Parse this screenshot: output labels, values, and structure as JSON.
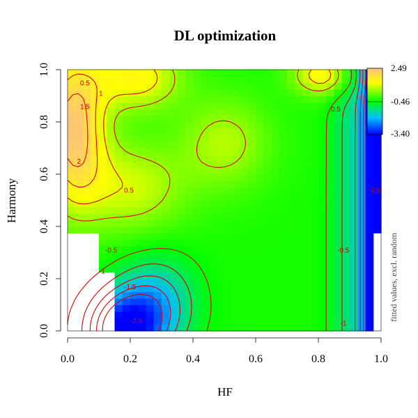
{
  "chart_data": {
    "type": "heatmap",
    "title": "DL optimization",
    "xlabel": "HF",
    "ylabel": "Harmony",
    "xlim": [
      0,
      1
    ],
    "ylim": [
      0,
      1
    ],
    "x_ticks": [
      "0.0",
      "0.2",
      "0.4",
      "0.6",
      "0.8",
      "1.0"
    ],
    "y_ticks": [
      "0.0",
      "0.2",
      "0.4",
      "0.6",
      "0.8",
      "1.0"
    ],
    "color_scale": {
      "label": "fitted values, excl. random",
      "min": -3.4,
      "mid": -0.46,
      "max": 2.49,
      "tick_labels": [
        "2.49",
        "-0.46",
        "-3.40"
      ],
      "colors": [
        "#0000ff",
        "#00bfff",
        "#00ff00",
        "#ffff00",
        "#ffc080"
      ]
    },
    "contour_levels": [
      "-2.5",
      "-2",
      "-1.5",
      "-1",
      "-0.5",
      "0.5",
      "1",
      "1.5",
      "2"
    ],
    "contour_color": "#dd0000",
    "surface_description_points": [
      {
        "x": 0.02,
        "y": 0.95,
        "z": 2.0
      },
      {
        "x": 0.02,
        "y": 0.75,
        "z": 2.2
      },
      {
        "x": 0.02,
        "y": 0.55,
        "z": 1.6
      },
      {
        "x": 0.03,
        "y": 0.45,
        "z": 0.8
      },
      {
        "x": 0.25,
        "y": 0.95,
        "z": 1.6
      },
      {
        "x": 0.55,
        "y": 0.7,
        "z": 0.9
      },
      {
        "x": 0.8,
        "y": 0.95,
        "z": 1.7
      },
      {
        "x": 0.4,
        "y": 0.35,
        "z": -0.2
      },
      {
        "x": 0.65,
        "y": 0.35,
        "z": -0.3
      },
      {
        "x": 0.5,
        "y": 0.1,
        "z": -0.45
      },
      {
        "x": 0.2,
        "y": 0.05,
        "z": -2.8
      },
      {
        "x": 0.25,
        "y": 0.15,
        "z": -1.8
      },
      {
        "x": 0.96,
        "y": 0.5,
        "z": -2.9
      },
      {
        "x": 0.96,
        "y": 0.15,
        "z": -3.1
      },
      {
        "x": 0.96,
        "y": 0.85,
        "z": -3.3
      }
    ]
  }
}
